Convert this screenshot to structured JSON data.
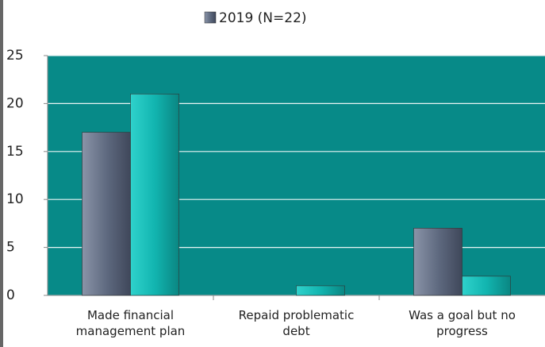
{
  "chart_data": {
    "type": "bar",
    "categories": [
      "Made financial management plan",
      "Repaid problematic debt",
      "Was a goal but no progress"
    ],
    "series": [
      {
        "name": "2019 (N=22)",
        "color": "#5f6a80",
        "values": [
          17,
          0,
          7
        ]
      },
      {
        "color": "#12b5b0",
        "values": [
          21,
          1,
          2
        ]
      }
    ],
    "ylim": [
      0,
      25
    ],
    "yticks": [
      0,
      5,
      10,
      15,
      20,
      25
    ],
    "grid": true,
    "plot_background": "#078a88",
    "legend": "top"
  }
}
